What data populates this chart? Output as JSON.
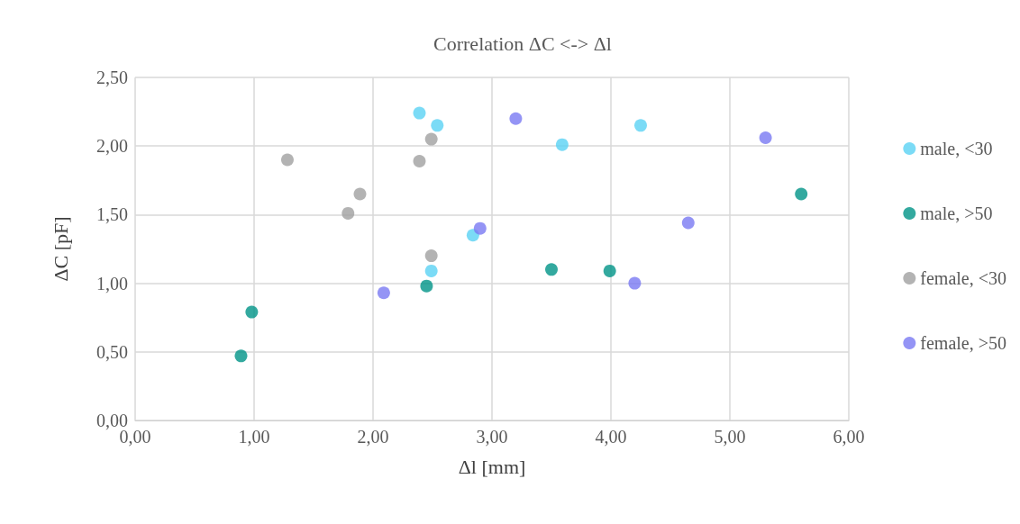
{
  "chart_data": {
    "type": "scatter",
    "title": "Correlation ΔC <-> Δl",
    "xlabel": "Δl [mm]",
    "ylabel": "ΔC [pF]",
    "xlim": [
      0,
      6
    ],
    "ylim": [
      0,
      2.5
    ],
    "xticks": [
      {
        "value": 0,
        "label": "0,00"
      },
      {
        "value": 1,
        "label": "1,00"
      },
      {
        "value": 2,
        "label": "2,00"
      },
      {
        "value": 3,
        "label": "3,00"
      },
      {
        "value": 4,
        "label": "4,00"
      },
      {
        "value": 5,
        "label": "5,00"
      },
      {
        "value": 6,
        "label": "6,00"
      }
    ],
    "yticks": [
      {
        "value": 0,
        "label": "0,00"
      },
      {
        "value": 0.5,
        "label": "0,50"
      },
      {
        "value": 1,
        "label": "1,00"
      },
      {
        "value": 1.5,
        "label": "1,50"
      },
      {
        "value": 2,
        "label": "2,00"
      },
      {
        "value": 2.5,
        "label": "2,50"
      }
    ],
    "grid": true,
    "legend": "right",
    "marker": "circle",
    "series": [
      {
        "name": "male, <30",
        "color": "#5ad2f4",
        "x": [
          2.39,
          2.54,
          3.59,
          4.25,
          2.84,
          2.49
        ],
        "values": [
          2.24,
          2.15,
          2.01,
          2.15,
          1.35,
          1.09
        ]
      },
      {
        "name": "male, >50",
        "color": "#009487",
        "x": [
          0.89,
          0.98,
          2.45,
          3.5,
          3.99,
          5.6
        ],
        "values": [
          0.47,
          0.79,
          0.98,
          1.1,
          1.09,
          1.65
        ]
      },
      {
        "name": "female, <30",
        "color": "#a0a0a0",
        "x": [
          1.28,
          1.79,
          1.89,
          2.39,
          2.49,
          2.49
        ],
        "values": [
          1.9,
          1.51,
          1.65,
          1.89,
          2.05,
          1.2
        ]
      },
      {
        "name": "female, >50",
        "color": "#7979f2",
        "x": [
          2.09,
          2.9,
          3.2,
          4.2,
          4.65,
          5.3
        ],
        "values": [
          0.93,
          1.4,
          2.2,
          1.0,
          1.44,
          2.06
        ]
      }
    ]
  }
}
